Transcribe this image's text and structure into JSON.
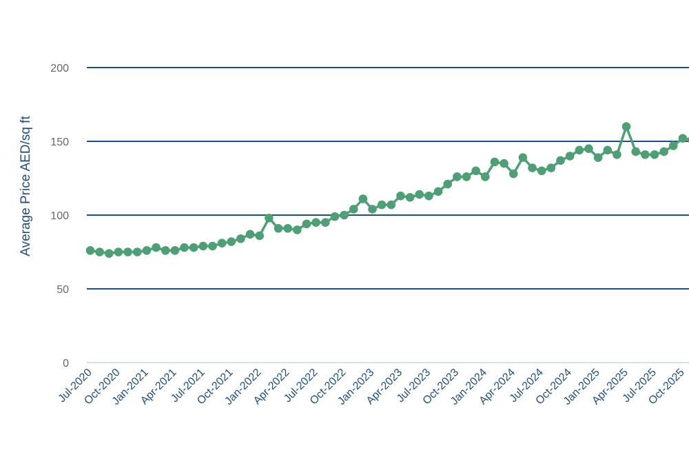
{
  "chart_data": {
    "type": "line",
    "title": "",
    "xlabel": "",
    "ylabel": "Average Price AED/sq ft",
    "ylim": [
      0,
      200
    ],
    "yticks": [
      0,
      50,
      100,
      150,
      200
    ],
    "grid": true,
    "legend": "none",
    "colors": {
      "series": "#4e9e76",
      "grid": "#1f4e79",
      "baseline": "#c5d5ea",
      "ylabel": "#1f4e79",
      "ytick": "#666666",
      "xtick": "#1f4e79"
    },
    "xtick_labels": [
      "Jul-2020",
      "Oct-2020",
      "Jan-2021",
      "Apr-2021",
      "Jul-2021",
      "Oct-2021",
      "Jan-2022",
      "Apr-2022",
      "Jul-2022",
      "Oct-2022",
      "Jan-2023",
      "Apr-2023",
      "Jul-2023",
      "Oct-2023",
      "Jan-2024",
      "Apr-2024",
      "Jul-2024",
      "Oct-2024",
      "Jan-2025",
      "Apr-2025",
      "Jul-2025",
      "Oct-2025"
    ],
    "categories": [
      "Jul-2020",
      "Aug-2020",
      "Sep-2020",
      "Oct-2020",
      "Nov-2020",
      "Dec-2020",
      "Jan-2021",
      "Feb-2021",
      "Mar-2021",
      "Apr-2021",
      "May-2021",
      "Jun-2021",
      "Jul-2021",
      "Aug-2021",
      "Sep-2021",
      "Oct-2021",
      "Nov-2021",
      "Dec-2021",
      "Jan-2022",
      "Feb-2022",
      "Mar-2022",
      "Apr-2022",
      "May-2022",
      "Jun-2022",
      "Jul-2022",
      "Aug-2022",
      "Sep-2022",
      "Oct-2022",
      "Nov-2022",
      "Dec-2022",
      "Jan-2023",
      "Feb-2023",
      "Mar-2023",
      "Apr-2023",
      "May-2023",
      "Jun-2023",
      "Jul-2023",
      "Aug-2023",
      "Sep-2023",
      "Oct-2023",
      "Nov-2023",
      "Dec-2023",
      "Jan-2024",
      "Feb-2024",
      "Mar-2024",
      "Apr-2024",
      "May-2024",
      "Jun-2024",
      "Jul-2024",
      "Aug-2024",
      "Sep-2024",
      "Oct-2024",
      "Nov-2024",
      "Dec-2024",
      "Jan-2025",
      "Feb-2025",
      "Mar-2025",
      "Apr-2025",
      "May-2025",
      "Jun-2025",
      "Jul-2025",
      "Aug-2025",
      "Sep-2025",
      "Oct-2025",
      "Nov-2025"
    ],
    "values": [
      76,
      75,
      74,
      75,
      75,
      75,
      76,
      78,
      76,
      76,
      78,
      78,
      79,
      79,
      81,
      82,
      84,
      87,
      86,
      98,
      91,
      91,
      90,
      94,
      95,
      95,
      99,
      100,
      104,
      111,
      104,
      107,
      107,
      113,
      112,
      114,
      113,
      116,
      121,
      126,
      126,
      130,
      126,
      136,
      135,
      128,
      139,
      132,
      130,
      132,
      137,
      140,
      144,
      145,
      139,
      144,
      141,
      160,
      143,
      141,
      141,
      143,
      147,
      152,
      151
    ]
  }
}
